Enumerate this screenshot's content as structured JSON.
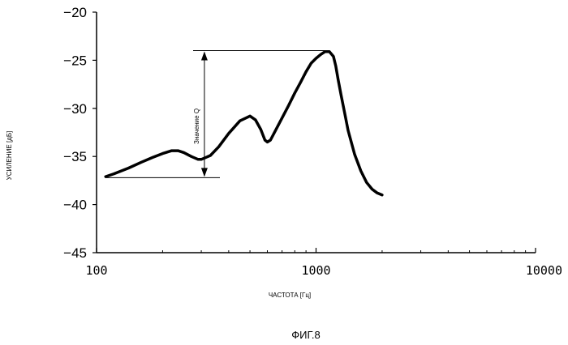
{
  "chart_data": {
    "type": "line",
    "xscale": "log",
    "xlim": [
      100,
      10000
    ],
    "ylim": [
      -45,
      -20
    ],
    "xticks": [
      100,
      1000,
      10000
    ],
    "xtick_labels": [
      "100",
      "1000",
      "10000"
    ],
    "yticks": [
      -20,
      -25,
      -30,
      -35,
      -40,
      -45
    ],
    "ytick_labels": [
      "−20",
      "−25",
      "−30",
      "−35",
      "−40",
      "−45"
    ],
    "xlabel": "ЧАСТОТА [Гц]",
    "ylabel": "УСИЛЕНИЕ [дБ]",
    "grid": false,
    "series": [
      {
        "x": [
          110,
          120,
          140,
          160,
          180,
          200,
          220,
          235,
          250,
          270,
          290,
          300,
          330,
          360,
          400,
          450,
          500,
          530,
          560,
          585,
          600,
          620,
          650,
          700,
          750,
          800,
          850,
          900,
          950,
          1000,
          1050,
          1100,
          1150,
          1200,
          1230,
          1260,
          1300,
          1350,
          1400,
          1500,
          1600,
          1700,
          1800,
          1900,
          2000
        ],
        "y": [
          -37.1,
          -36.8,
          -36.2,
          -35.6,
          -35.1,
          -34.7,
          -34.4,
          -34.4,
          -34.6,
          -35.0,
          -35.3,
          -35.3,
          -34.9,
          -34.0,
          -32.6,
          -31.3,
          -30.8,
          -31.2,
          -32.2,
          -33.3,
          -33.5,
          -33.3,
          -32.4,
          -31.0,
          -29.7,
          -28.4,
          -27.3,
          -26.2,
          -25.3,
          -24.8,
          -24.4,
          -24.1,
          -24.1,
          -24.6,
          -25.6,
          -27.0,
          -28.6,
          -30.5,
          -32.3,
          -34.8,
          -36.5,
          -37.7,
          -38.4,
          -38.8,
          -39.0
        ]
      }
    ],
    "annotation": {
      "label": "Значение Q",
      "x": 310,
      "y_top": -24.0,
      "y_bottom": -37.2
    }
  },
  "figure": {
    "caption": "ФИГ.8"
  }
}
